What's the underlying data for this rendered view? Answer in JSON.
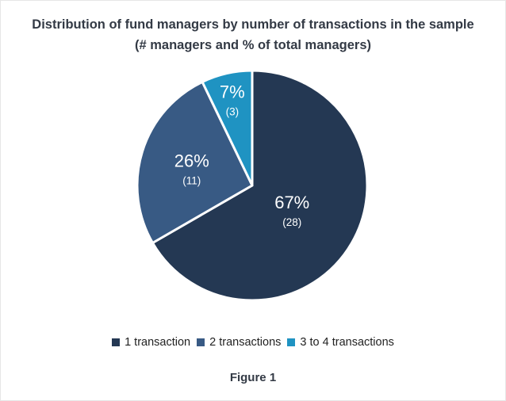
{
  "chart_data": {
    "type": "pie",
    "title": "Distribution of fund managers by number of transactions in the sample",
    "subtitle": "(# managers and % of total managers)",
    "slices": [
      {
        "label": "1 transaction",
        "percent": 67,
        "percent_label": "67%",
        "count": 28,
        "count_label": "(28)",
        "color": "#243853"
      },
      {
        "label": "2 transactions",
        "percent": 26,
        "percent_label": "26%",
        "count": 11,
        "count_label": "(11)",
        "color": "#385a84"
      },
      {
        "label": "3 to 4 transactions",
        "percent": 7,
        "percent_label": "7%",
        "count": 3,
        "count_label": "(3)",
        "color": "#1f93c2"
      }
    ],
    "legend_position": "bottom-center"
  },
  "caption": "Figure 1"
}
